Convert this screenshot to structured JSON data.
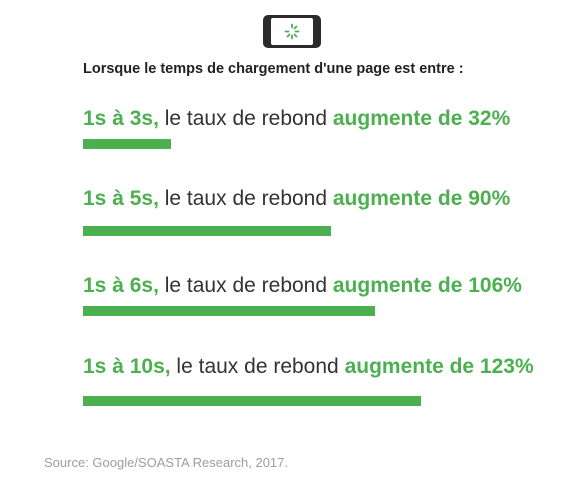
{
  "heading": "Lorsque le temps de chargement d'une page est entre :",
  "source": "Source: Google/SOASTA Research, 2017.",
  "icon": "phone-loading-icon",
  "colors": {
    "accent": "#4caf50",
    "text": "#333333",
    "source": "#9e9e9e"
  },
  "rows": [
    {
      "range": "1s à 3s,",
      "middle": " le taux de rebond ",
      "result": "augmente de 32%"
    },
    {
      "range": "1s à 5s,",
      "middle": " le taux de rebond ",
      "result": "augmente de 90%"
    },
    {
      "range": "1s à 6s,",
      "middle": " le taux de rebond ",
      "result": "augmente de 106%"
    },
    {
      "range": "1s à 10s,",
      "middle": " le taux de rebond ",
      "result": "augmente de 123%"
    }
  ],
  "chart_data": {
    "type": "bar",
    "categories": [
      "1s à 3s",
      "1s à 5s",
      "1s à 6s",
      "1s à 10s"
    ],
    "values": [
      32,
      90,
      106,
      123
    ],
    "title": "Lorsque le temps de chargement d'une page est entre :",
    "xlabel": "",
    "ylabel": "",
    "grid": false
  }
}
